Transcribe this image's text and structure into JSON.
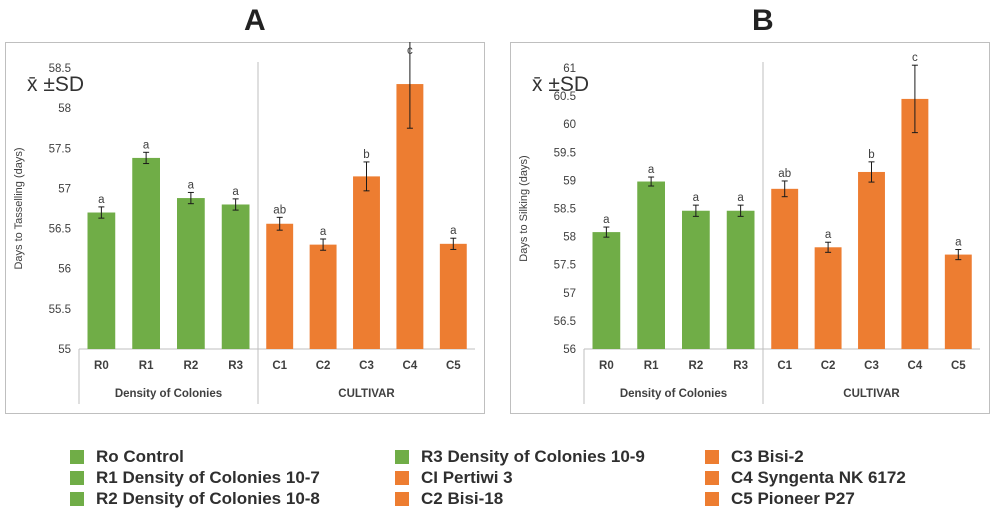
{
  "panels": [
    {
      "letter": "A"
    },
    {
      "letter": "B"
    }
  ],
  "colors": {
    "green": "#70ad47",
    "orange": "#ed7d31"
  },
  "chart_data": [
    {
      "type": "bar",
      "title": "",
      "annotation": "x̄ ±SD",
      "ylabel": "Days to Tasselling (days)",
      "ylim": [
        55,
        58.5
      ],
      "yticks": [
        "55",
        "55.5",
        "56",
        "56.5",
        "57",
        "57.5",
        "58",
        "58.5"
      ],
      "ytick_values": [
        55,
        55.5,
        56,
        56.5,
        57,
        57.5,
        58,
        58.5
      ],
      "groups": [
        {
          "name": "Density of Colonies",
          "categories": [
            "R0",
            "R1",
            "R2",
            "R3"
          ],
          "values": [
            56.7,
            57.38,
            56.88,
            56.8
          ],
          "sd": [
            0.07,
            0.07,
            0.07,
            0.07
          ],
          "letters": [
            "a",
            "a",
            "a",
            "a"
          ],
          "color": "#70ad47"
        },
        {
          "name": "CULTIVAR",
          "categories": [
            "C1",
            "C2",
            "C3",
            "C4",
            "C5"
          ],
          "values": [
            56.56,
            56.3,
            57.15,
            58.3,
            56.31
          ],
          "sd": [
            0.08,
            0.07,
            0.18,
            0.55,
            0.07
          ],
          "letters": [
            "ab",
            "a",
            "b",
            "c",
            "a"
          ],
          "color": "#ed7d31"
        }
      ],
      "grid": false
    },
    {
      "type": "bar",
      "title": "",
      "annotation": "x̄ ±SD",
      "ylabel": "Days to Silking (days)",
      "ylim": [
        56,
        61
      ],
      "yticks": [
        "56",
        "56.5",
        "57",
        "57.5",
        "58",
        "58.5",
        "59",
        "59.5",
        "60",
        "60.5",
        "61"
      ],
      "ytick_values": [
        56,
        56.5,
        57,
        57.5,
        58,
        58.5,
        59,
        59.5,
        60,
        60.5,
        61
      ],
      "groups": [
        {
          "name": "Density of Colonies",
          "categories": [
            "R0",
            "R1",
            "R2",
            "R3"
          ],
          "values": [
            58.08,
            58.98,
            58.46,
            58.46
          ],
          "sd": [
            0.09,
            0.08,
            0.1,
            0.1
          ],
          "letters": [
            "a",
            "a",
            "a",
            "a"
          ],
          "color": "#70ad47"
        },
        {
          "name": "CULTIVAR",
          "categories": [
            "C1",
            "C2",
            "C3",
            "C4",
            "C5"
          ],
          "values": [
            58.85,
            57.81,
            59.15,
            60.45,
            57.68
          ],
          "sd": [
            0.14,
            0.09,
            0.18,
            0.6,
            0.09
          ],
          "letters": [
            "ab",
            "a",
            "b",
            "c",
            "a"
          ],
          "color": "#ed7d31"
        }
      ],
      "grid": false
    }
  ],
  "legend": [
    {
      "label": "Ro Control",
      "color": "#70ad47"
    },
    {
      "label": "R1 Density of Colonies 10-7",
      "color": "#70ad47"
    },
    {
      "label": "R2 Density of Colonies 10-8",
      "color": "#70ad47"
    },
    {
      "label": "R3 Density of Colonies 10-9",
      "color": "#70ad47"
    },
    {
      "label": "CI Pertiwi 3",
      "color": "#ed7d31"
    },
    {
      "label": "C2 Bisi-18",
      "color": "#ed7d31"
    },
    {
      "label": "C3 Bisi-2",
      "color": "#ed7d31"
    },
    {
      "label": "C4 Syngenta NK 6172",
      "color": "#ed7d31"
    },
    {
      "label": "C5 Pioneer P27",
      "color": "#ed7d31"
    }
  ]
}
